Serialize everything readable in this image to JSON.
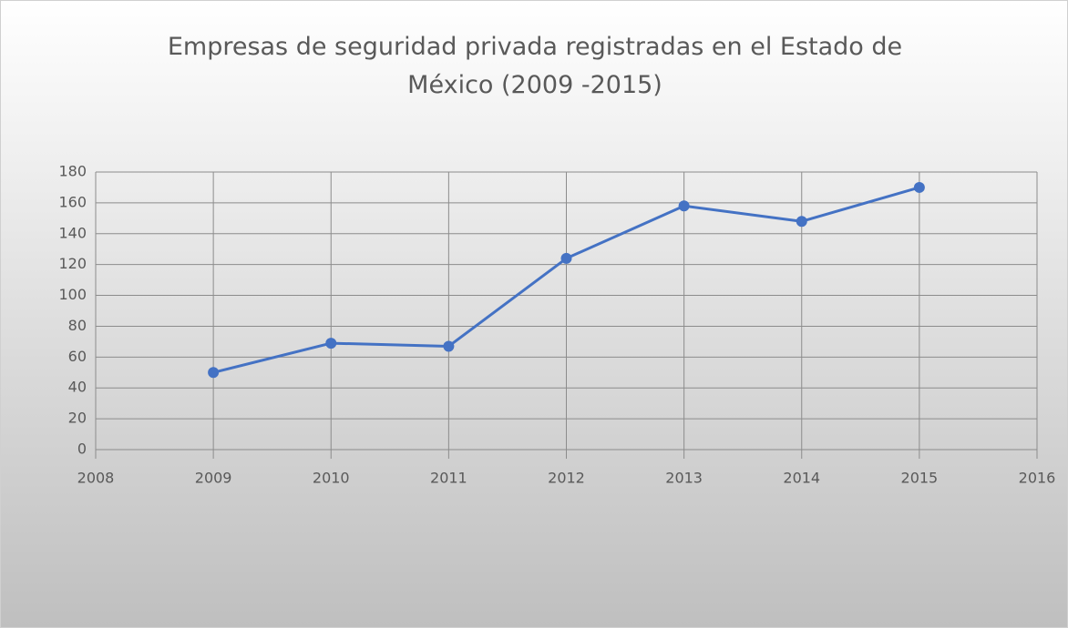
{
  "chart_data": {
    "type": "line",
    "title": "Empresas de seguridad privada registradas en el Estado de México (2009 -2015)",
    "x": [
      2009,
      2010,
      2011,
      2012,
      2013,
      2014,
      2015
    ],
    "values": [
      50,
      69,
      67,
      124,
      158,
      148,
      170
    ],
    "color": "#4472c4",
    "xlim": [
      2008,
      2016
    ],
    "xticks": [
      2008,
      2009,
      2010,
      2011,
      2012,
      2013,
      2014,
      2015,
      2016
    ],
    "ylim": [
      0,
      180
    ],
    "yticks": [
      0,
      20,
      40,
      60,
      80,
      100,
      120,
      140,
      160,
      180
    ],
    "grid": true
  }
}
